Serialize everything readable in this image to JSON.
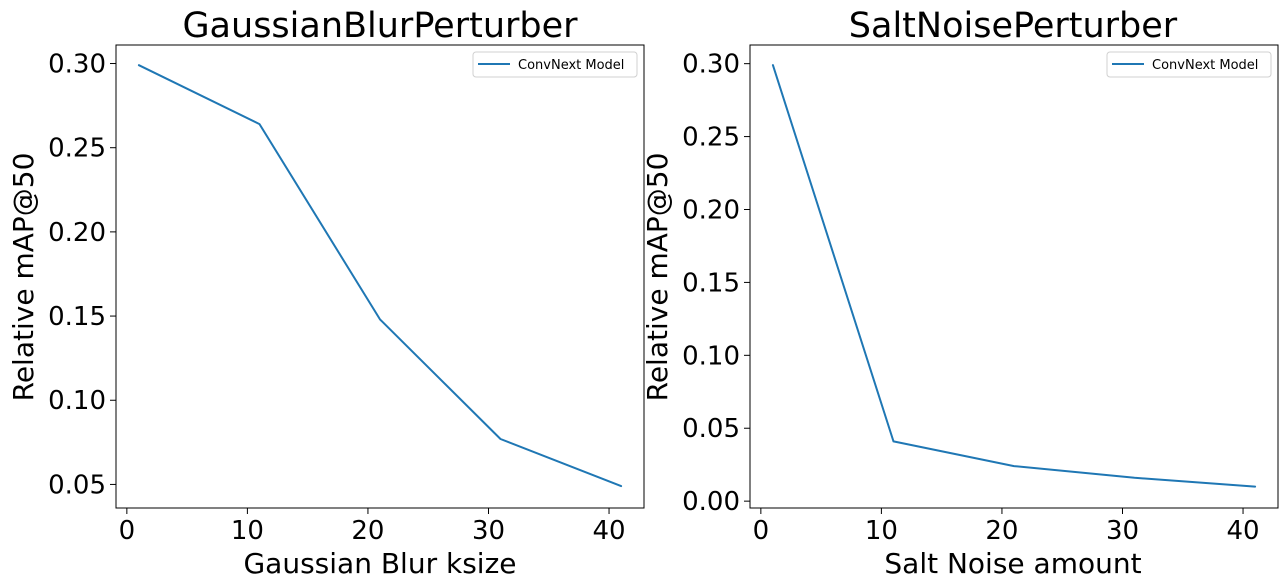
{
  "chart_data": [
    {
      "type": "line",
      "title": "GaussianBlurPerturber",
      "xlabel": "Gaussian Blur ksize",
      "ylabel": "Relative mAP@50",
      "x": [
        1,
        11,
        21,
        31,
        41
      ],
      "xlim": [
        -0.9,
        42.9
      ],
      "ylim": [
        0.036,
        0.311
      ],
      "xticks": [
        0,
        10,
        20,
        30,
        40
      ],
      "yticks": [
        0.05,
        0.1,
        0.15,
        0.2,
        0.25,
        0.3
      ],
      "ytick_format": 2,
      "grid": false,
      "legend_position": "top-right",
      "series": [
        {
          "name": "ConvNext Model",
          "color": "#1f77b4",
          "values": [
            0.299,
            0.264,
            0.148,
            0.077,
            0.049
          ]
        }
      ]
    },
    {
      "type": "line",
      "title": "SaltNoisePerturber",
      "xlabel": "Salt Noise amount",
      "ylabel": "Relative mAP@50",
      "x": [
        1,
        11,
        21,
        31,
        41
      ],
      "xlim": [
        -0.9,
        42.9
      ],
      "ylim": [
        -0.0047,
        0.3128
      ],
      "xticks": [
        0,
        10,
        20,
        30,
        40
      ],
      "yticks": [
        0.0,
        0.05,
        0.1,
        0.15,
        0.2,
        0.25,
        0.3
      ],
      "ytick_format": 2,
      "grid": false,
      "legend_position": "top-right",
      "series": [
        {
          "name": "ConvNext Model",
          "color": "#1f77b4",
          "values": [
            0.299,
            0.041,
            0.024,
            0.016,
            0.01
          ]
        }
      ]
    }
  ]
}
